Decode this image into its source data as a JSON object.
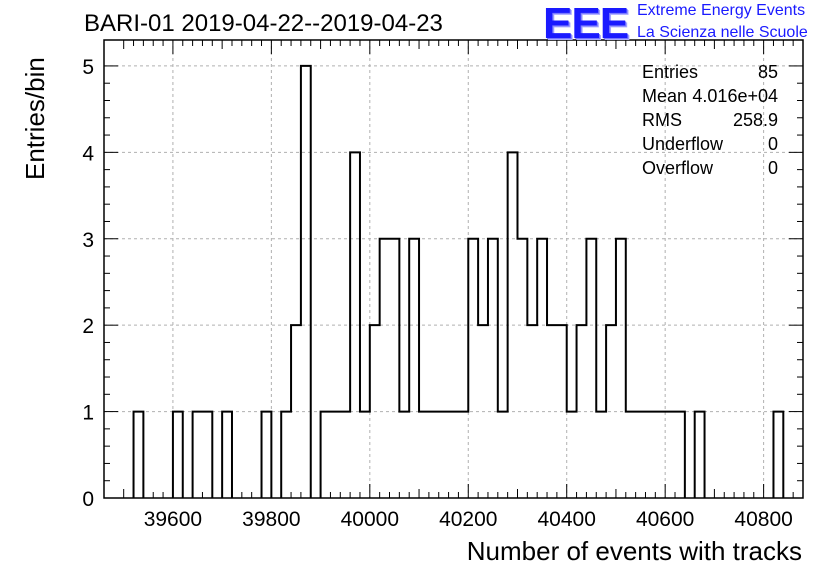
{
  "title": "BARI-01 2019-04-22--2019-04-23",
  "logo": {
    "mark": "EEE",
    "line1": "Extreme Energy Events",
    "line2": "La Scienza nelle Scuole",
    "color": "#1a1aff"
  },
  "stats": [
    {
      "key": "Entries",
      "value": "85"
    },
    {
      "key": "Mean",
      "value": "4.016e+04"
    },
    {
      "key": "RMS",
      "value": "258.9"
    },
    {
      "key": "Underflow",
      "value": "0"
    },
    {
      "key": "Overflow",
      "value": "0"
    }
  ],
  "chart_data": {
    "type": "bar",
    "style": "step-histogram",
    "title": "BARI-01 2019-04-22--2019-04-23",
    "xlabel": "Number of events with tracks",
    "ylabel": "Entries/bin",
    "xlim": [
      39460,
      40880
    ],
    "ylim": [
      0,
      5.3
    ],
    "xticks": [
      39600,
      39800,
      40000,
      40200,
      40400,
      40600,
      40800
    ],
    "yticks": [
      0,
      1,
      2,
      3,
      4,
      5
    ],
    "grid": true,
    "bin_width": 20,
    "bins": [
      [
        39520,
        1
      ],
      [
        39600,
        1
      ],
      [
        39640,
        1
      ],
      [
        39660,
        1
      ],
      [
        39700,
        1
      ],
      [
        39780,
        1
      ],
      [
        39820,
        1
      ],
      [
        39840,
        2
      ],
      [
        39860,
        5
      ],
      [
        39900,
        1
      ],
      [
        39920,
        1
      ],
      [
        39940,
        1
      ],
      [
        39960,
        4
      ],
      [
        39980,
        1
      ],
      [
        40000,
        2
      ],
      [
        40020,
        3
      ],
      [
        40040,
        3
      ],
      [
        40060,
        1
      ],
      [
        40080,
        3
      ],
      [
        40100,
        1
      ],
      [
        40120,
        1
      ],
      [
        40140,
        1
      ],
      [
        40160,
        1
      ],
      [
        40180,
        1
      ],
      [
        40200,
        3
      ],
      [
        40220,
        2
      ],
      [
        40240,
        3
      ],
      [
        40260,
        1
      ],
      [
        40280,
        4
      ],
      [
        40300,
        3
      ],
      [
        40320,
        2
      ],
      [
        40340,
        3
      ],
      [
        40360,
        2
      ],
      [
        40380,
        2
      ],
      [
        40400,
        1
      ],
      [
        40420,
        2
      ],
      [
        40440,
        3
      ],
      [
        40460,
        1
      ],
      [
        40480,
        2
      ],
      [
        40500,
        3
      ],
      [
        40520,
        1
      ],
      [
        40540,
        1
      ],
      [
        40560,
        1
      ],
      [
        40580,
        1
      ],
      [
        40600,
        1
      ],
      [
        40620,
        1
      ],
      [
        40660,
        1
      ],
      [
        40820,
        1
      ]
    ]
  }
}
